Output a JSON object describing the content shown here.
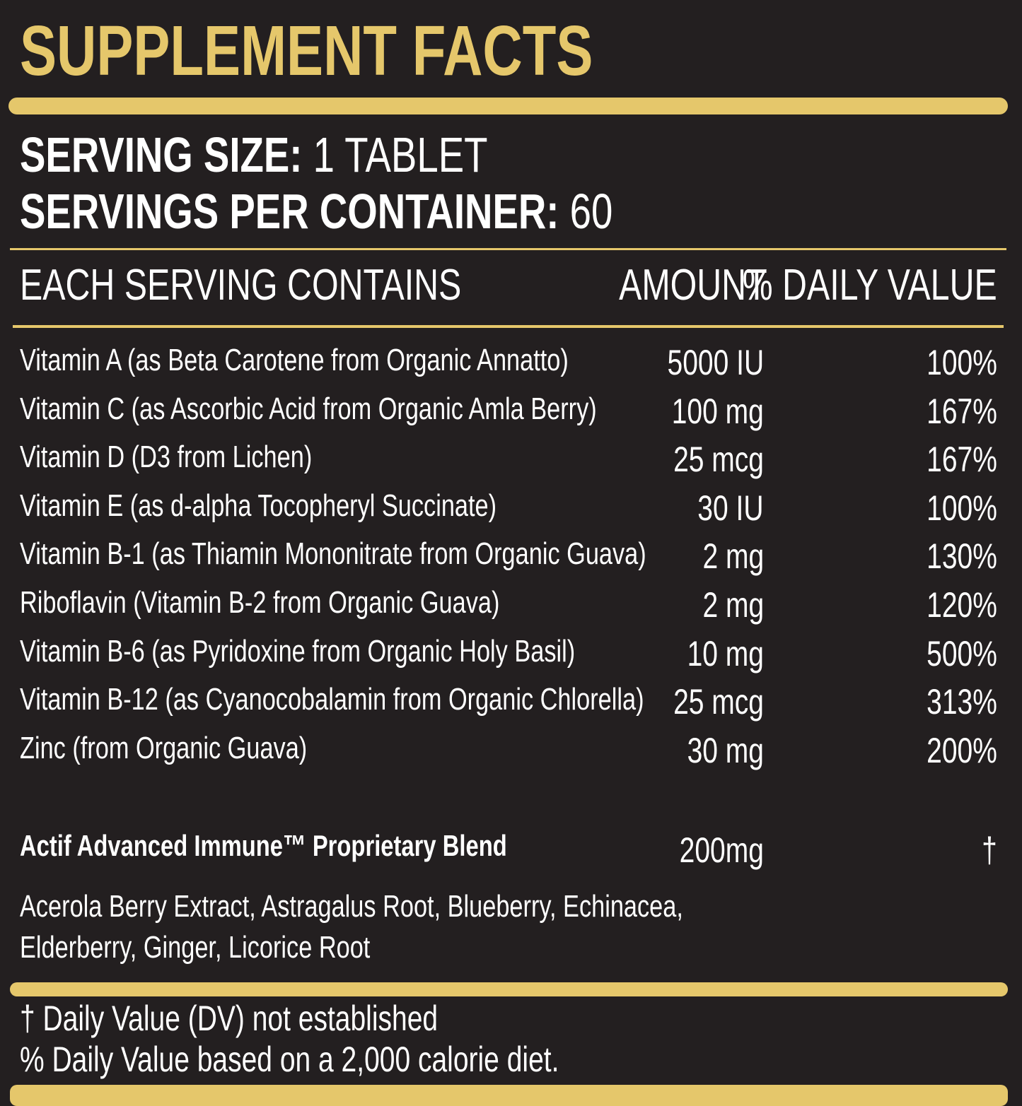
{
  "title": "SUPPLEMENT FACTS",
  "serving_size": {
    "label": "SERVING SIZE:",
    "value": "1 TABLET"
  },
  "servings_per_container": {
    "label": "SERVINGS PER CONTAINER:",
    "value": "60"
  },
  "table": {
    "header": [
      "EACH SERVING CONTAINS",
      "AMOUNT",
      "% DAILY VALUE"
    ],
    "rows": [
      [
        "Vitamin A (as Beta Carotene from Organic Annatto)",
        "5000 IU",
        "100%"
      ],
      [
        "Vitamin C (as Ascorbic Acid from Organic Amla Berry)",
        "100 mg",
        "167%"
      ],
      [
        "Vitamin D (D3 from Lichen)",
        "25 mcg",
        "167%"
      ],
      [
        "Vitamin E (as d-alpha Tocopheryl Succinate)",
        "30 IU",
        "100%"
      ],
      [
        "Vitamin B-1 (as Thiamin Mononitrate from Organic Guava)",
        "2 mg",
        "130%"
      ],
      [
        "Riboflavin (Vitamin B-2 from Organic Guava)",
        "2 mg",
        "120%"
      ],
      [
        "Vitamin B-6 (as Pyridoxine from Organic Holy Basil)",
        "10 mg",
        "500%"
      ],
      [
        "Vitamin B-12 (as Cyanocobalamin from Organic Chlorella)",
        "25 mcg",
        "313%"
      ],
      [
        "Zinc (from Organic Guava)",
        "30 mg",
        "200%"
      ]
    ],
    "blend": {
      "name": "Actif Advanced Immune™ Proprietary Blend",
      "amount": "200mg",
      "daily_value": "†",
      "ingredients": [
        "Acerola Berry Extract, Astragalus Root, Blueberry, Echinacea,",
        "Elderberry, Ginger, Licorice Root"
      ]
    }
  },
  "footnotes": [
    "† Daily Value (DV) not established",
    "% Daily Value based on a 2,000 calorie diet."
  ]
}
